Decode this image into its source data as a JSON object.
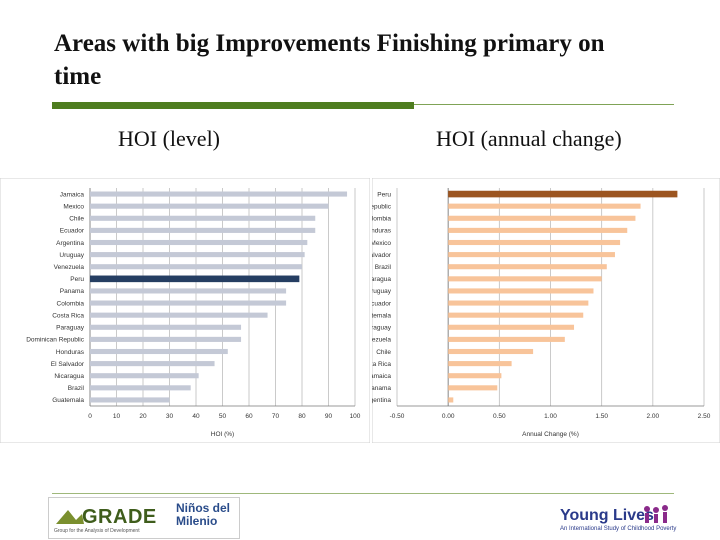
{
  "title": "Areas with big Improvements Finishing primary on time",
  "subtitle_left": "HOI  (level)",
  "subtitle_right": "HOI (annual change)",
  "colors": {
    "left_bar": "#c4c9d6",
    "left_highlight": "#253e62",
    "right_bar": "#f8c49a",
    "right_highlight": "#9c5520",
    "rule": "#4e7d1f"
  },
  "chart_data": [
    {
      "type": "bar",
      "orientation": "horizontal",
      "xlabel": "HOI (%)",
      "ylabel": "",
      "xlim": [
        0,
        100
      ],
      "xticks": [
        "0",
        "10",
        "20",
        "30",
        "40",
        "50",
        "60",
        "70",
        "80",
        "90",
        "100"
      ],
      "highlight": "Peru",
      "categories": [
        "Jamaica",
        "Mexico",
        "Chile",
        "Ecuador",
        "Argentina",
        "Uruguay",
        "Venezuela",
        "Peru",
        "Panama",
        "Colombia",
        "Costa Rica",
        "Paraguay",
        "Dominican Republic",
        "Honduras",
        "El Salvador",
        "Nicaragua",
        "Brazil",
        "Guatemala"
      ],
      "values": [
        97,
        90,
        85,
        85,
        82,
        81,
        80,
        79,
        74,
        74,
        67,
        57,
        57,
        52,
        47,
        41,
        38,
        30
      ],
      "grid": true
    },
    {
      "type": "bar",
      "orientation": "horizontal",
      "xlabel": "Annual Change (%)",
      "ylabel": "",
      "xlim": [
        -0.5,
        2.5
      ],
      "xticks": [
        "-0.50",
        "0.00",
        "0.50",
        "1.00",
        "1.50",
        "2.00",
        "2.50"
      ],
      "highlight": "Peru",
      "categories": [
        "Peru",
        "Dominican Republic",
        "Colombia",
        "Honduras",
        "Mexico",
        "El Salvador",
        "Brazil",
        "Nicaragua",
        "Uruguay",
        "Ecuador",
        "Guatemala",
        "Paraguay",
        "Venezuela",
        "Chile",
        "Costa Rica",
        "Jamaica",
        "Panama",
        "Argentina"
      ],
      "values": [
        2.24,
        1.88,
        1.83,
        1.75,
        1.68,
        1.63,
        1.55,
        1.5,
        1.42,
        1.37,
        1.32,
        1.23,
        1.14,
        0.83,
        0.62,
        0.52,
        0.48,
        0.05
      ],
      "grid": true
    }
  ],
  "footer": {
    "grade_logo_text": "GRADE",
    "grade_logo_sub": "Group for the Analysis of Development",
    "ninos_logo_line1": "Niños del",
    "ninos_logo_line2": "Milenio",
    "young_lives_text": "Young Lives",
    "young_lives_sub": "An International Study of Childhood Poverty"
  }
}
